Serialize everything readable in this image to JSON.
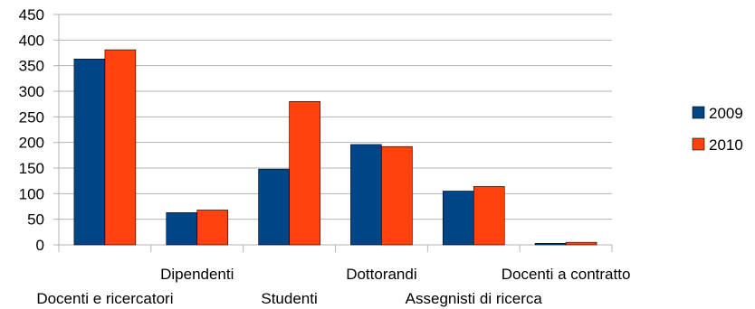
{
  "chart_data": {
    "type": "bar",
    "categories": [
      "Docenti e ricercatori",
      "Dipendenti",
      "Studenti",
      "Dottorandi",
      "Assegnisti di ricerca",
      "Docenti a contratto"
    ],
    "series": [
      {
        "name": "2009",
        "color": "#004586",
        "values": [
          363,
          63,
          148,
          196,
          105,
          3
        ]
      },
      {
        "name": "2010",
        "color": "#ff420e",
        "values": [
          381,
          68,
          280,
          192,
          114,
          5
        ]
      }
    ],
    "yticks": [
      "0",
      "50",
      "100",
      "150",
      "200",
      "250",
      "300",
      "350",
      "400",
      "450"
    ],
    "ylim": [
      0,
      450
    ],
    "grid": true,
    "legend_position": "right"
  }
}
